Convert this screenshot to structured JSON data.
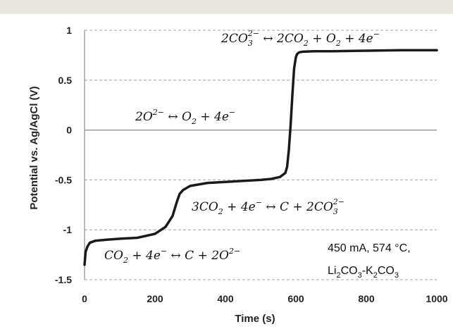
{
  "chart_data": {
    "type": "line",
    "xlabel": "Time (s)",
    "ylabel": "Potential vs. Ag/AgCl (V)",
    "xlim": [
      0,
      1000
    ],
    "ylim": [
      -1.5,
      1
    ],
    "x_ticks": [
      "0",
      "200",
      "400",
      "600",
      "800",
      "1000"
    ],
    "y_ticks": [
      "1",
      "0.5",
      "0",
      "-0.5",
      "-1",
      "-1.5"
    ],
    "grid": "horizontal dashed",
    "series": [
      {
        "x": [
          0,
          3,
          8,
          15,
          30,
          60,
          100,
          150,
          200,
          230,
          250,
          262,
          270,
          280,
          300,
          350,
          400,
          450,
          500,
          530,
          555,
          570,
          575,
          580,
          585,
          590,
          595,
          600,
          603,
          606,
          610,
          620,
          650,
          700,
          800,
          900,
          1000
        ],
        "y": [
          -1.35,
          -1.22,
          -1.17,
          -1.13,
          -1.11,
          -1.1,
          -1.09,
          -1.08,
          -1.04,
          -0.97,
          -0.86,
          -0.72,
          -0.64,
          -0.6,
          -0.56,
          -0.53,
          -0.52,
          -0.51,
          -0.5,
          -0.49,
          -0.47,
          -0.43,
          -0.37,
          -0.2,
          0.05,
          0.35,
          0.62,
          0.73,
          0.76,
          0.77,
          0.78,
          0.785,
          0.79,
          0.79,
          0.795,
          0.8,
          0.8
        ]
      }
    ],
    "annotations": {
      "eq1_main": "2CO",
      "eq1_sub1": "3",
      "eq1_sup1": "2−",
      "eq1_rest": " ↔ 2CO",
      "eq1_sub2": "2",
      "eq1_rest2": " + O",
      "eq1_sub3": "2",
      "eq1_rest3": " + 4e",
      "eq1_sup2": "−",
      "eq2_a": "2O",
      "eq2_sup1": "2−",
      "eq2_b": " ↔ O",
      "eq2_sub1": "2",
      "eq2_c": " + 4e",
      "eq2_sup2": "−",
      "eq3_a": "3CO",
      "eq3_sub1": "2",
      "eq3_b": " + 4e",
      "eq3_sup1": "−",
      "eq3_c": "  ↔ C + 2CO",
      "eq3_sub2": "3",
      "eq3_sup2": "2−",
      "eq4_a": "CO",
      "eq4_sub1": "2",
      "eq4_b": " + 4e",
      "eq4_sup1": "−",
      "eq4_c": "  ↔ C + 2O",
      "eq4_sup2": "2−",
      "cond_line1": "450 mA, 574 °C,",
      "cond_li": "Li",
      "cond_sub1": "2",
      "cond_co": "CO",
      "cond_sub2": "3",
      "cond_k": "-K",
      "cond_sub3": "2",
      "cond_co2": "CO",
      "cond_sub4": "3"
    }
  },
  "colors": {
    "line": "#1a1a1a",
    "grid": "#a6a6a6",
    "zero_line": "#8c8c8c",
    "header_band": "#e8e6df"
  }
}
